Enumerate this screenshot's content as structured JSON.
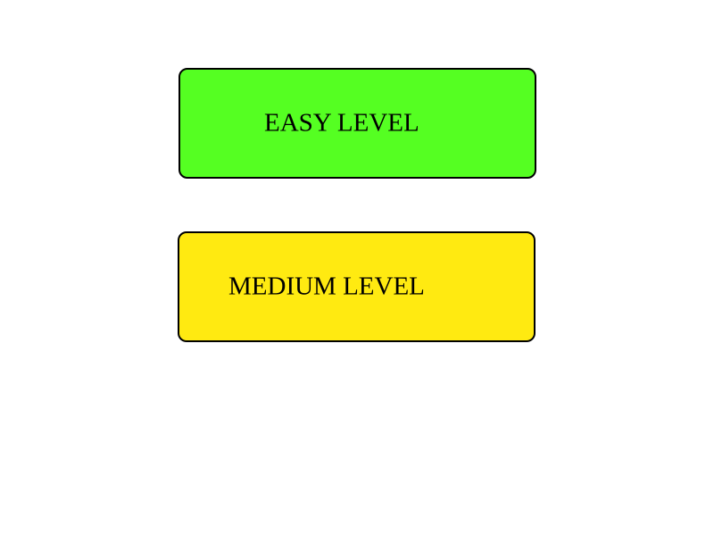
{
  "levels": {
    "easy": {
      "label": "EASY LEVEL",
      "color": "#55ff22"
    },
    "medium": {
      "label": "MEDIUM LEVEL",
      "color": "#ffea11"
    }
  }
}
